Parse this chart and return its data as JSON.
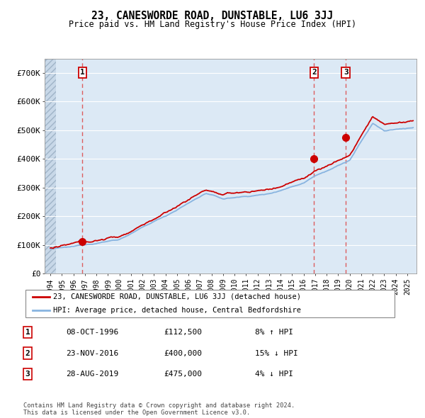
{
  "title": "23, CANESWORDE ROAD, DUNSTABLE, LU6 3JJ",
  "subtitle": "Price paid vs. HM Land Registry's House Price Index (HPI)",
  "background_color": "#ffffff",
  "plot_bg_color": "#dce9f5",
  "grid_color": "#ffffff",
  "hatch_color": "#b8c8d8",
  "transactions": [
    {
      "date": 1996.79,
      "price": 112500,
      "label": "1"
    },
    {
      "date": 2016.9,
      "price": 400000,
      "label": "2"
    },
    {
      "date": 2019.66,
      "price": 475000,
      "label": "3"
    }
  ],
  "table_rows": [
    {
      "num": "1",
      "date": "08-OCT-1996",
      "price": "£112,500",
      "hpi": "8% ↑ HPI"
    },
    {
      "num": "2",
      "date": "23-NOV-2016",
      "price": "£400,000",
      "hpi": "15% ↓ HPI"
    },
    {
      "num": "3",
      "date": "28-AUG-2019",
      "price": "£475,000",
      "hpi": "4% ↓ HPI"
    }
  ],
  "footer": "Contains HM Land Registry data © Crown copyright and database right 2024.\nThis data is licensed under the Open Government Licence v3.0.",
  "legend_line1": "23, CANESWORDE ROAD, DUNSTABLE, LU6 3JJ (detached house)",
  "legend_line2": "HPI: Average price, detached house, Central Bedfordshire",
  "line_color": "#cc0000",
  "hpi_color": "#88b4e0",
  "marker_color": "#cc0000",
  "dashed_color": "#dd4444",
  "ylim": [
    0,
    750000
  ],
  "yticks": [
    0,
    100000,
    200000,
    300000,
    400000,
    500000,
    600000,
    700000
  ],
  "ytick_labels": [
    "£0",
    "£100K",
    "£200K",
    "£300K",
    "£400K",
    "£500K",
    "£600K",
    "£700K"
  ],
  "xlim_start": 1993.5,
  "xlim_end": 2025.8,
  "hatch_end": 1994.5
}
